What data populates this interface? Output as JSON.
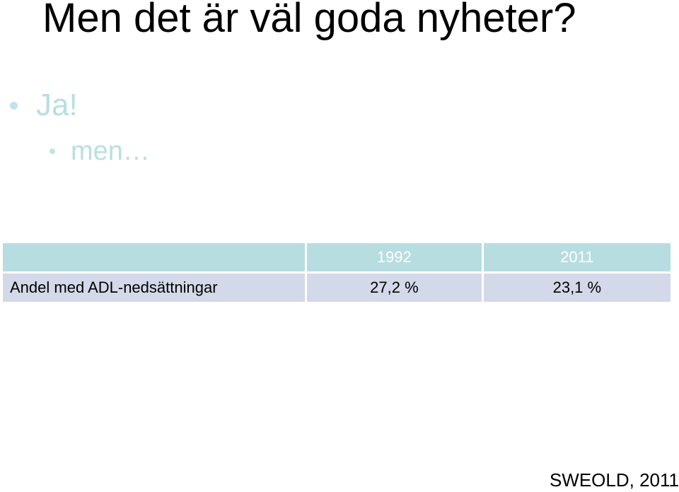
{
  "slide": {
    "title": "Men det är väl goda nyheter?",
    "bullets": [
      {
        "level": 1,
        "text": "Ja!"
      },
      {
        "level": 2,
        "text": "men…"
      }
    ]
  },
  "table": {
    "headers": [
      "",
      "1992",
      "2011"
    ],
    "rows": [
      {
        "label": "Andel med ADL-nedsättningar",
        "values": [
          "27,2 %",
          "23,1 %"
        ]
      }
    ]
  },
  "source": "SWEOLD, 2011",
  "colors": {
    "header_fill": "#b7dde1",
    "row_fill": "#d3d9e9",
    "bullet_text": "#b9dfe2"
  }
}
